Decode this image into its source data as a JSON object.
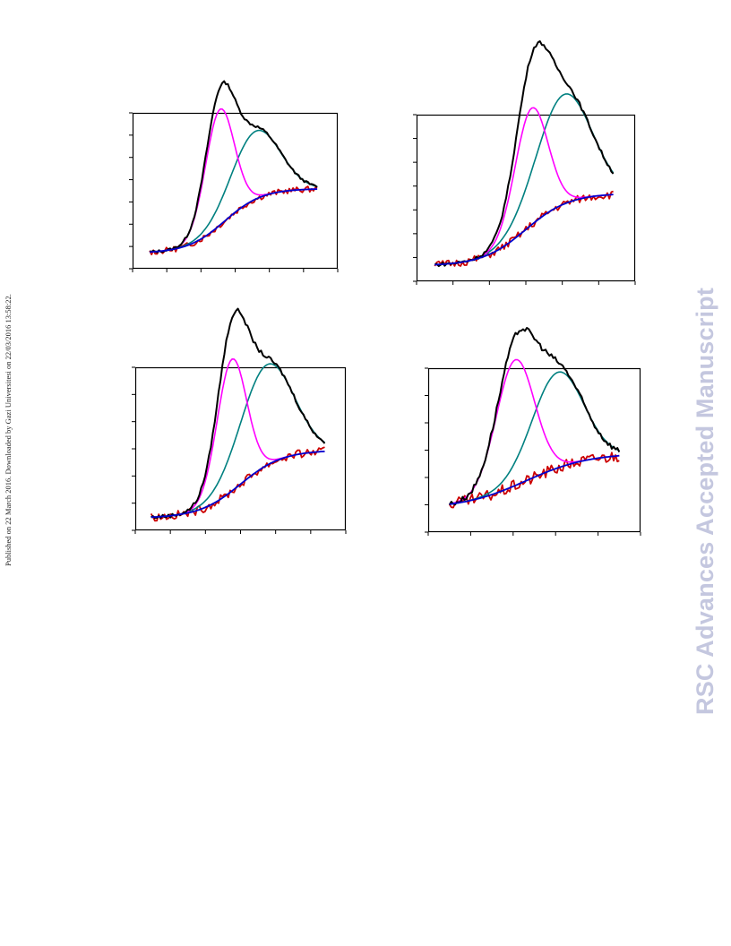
{
  "side_note": "Published on 22 March 2016. Downloaded by Gazi Universitesi on 22/03/2016 13:58:22.",
  "watermark": "RSC Advances Accepted Manuscript",
  "colors": {
    "measured": "#cc0000",
    "total_fit": "#000000",
    "peak_1": "#ff00ff",
    "peak_2": "#008080",
    "baseline": "#0000cc",
    "frame": "#000000"
  },
  "chart_data": [
    {
      "panel": "top-left",
      "type": "line",
      "xlim": [
        0,
        6
      ],
      "ylim": [
        0,
        7
      ],
      "x_ticks": 7,
      "y_ticks": 8,
      "x_range": [
        0.5,
        5.4
      ],
      "base_start": 0.7,
      "base_end": 3.6,
      "base_mid": 2.7,
      "base_width": 0.55,
      "peaks": [
        {
          "series": "peak_1",
          "center": 2.55,
          "height": 5.2,
          "width": 0.42
        },
        {
          "series": "peak_2",
          "center": 3.6,
          "height": 3.05,
          "width": 0.7
        }
      ],
      "noise": 0.12,
      "series": [
        "measured",
        "total_fit",
        "peak_1",
        "peak_2",
        "baseline"
      ]
    },
    {
      "panel": "top-right",
      "type": "line",
      "xlim": [
        0,
        6
      ],
      "ylim": [
        0,
        7
      ],
      "x_ticks": 7,
      "y_ticks": 8,
      "x_range": [
        0.5,
        5.4
      ],
      "base_start": 0.65,
      "base_end": 3.7,
      "base_mid": 3.0,
      "base_width": 0.6,
      "peaks": [
        {
          "series": "peak_1",
          "center": 3.15,
          "height": 4.9,
          "width": 0.45
        },
        {
          "series": "peak_2",
          "center": 4.05,
          "height": 4.6,
          "width": 0.75
        }
      ],
      "noise": 0.15,
      "series": [
        "measured",
        "total_fit",
        "peak_1",
        "peak_2",
        "baseline"
      ]
    },
    {
      "panel": "bottom-left",
      "type": "line",
      "xlim": [
        0,
        6
      ],
      "ylim": [
        0,
        6
      ],
      "x_ticks": 7,
      "y_ticks": 7,
      "x_range": [
        0.45,
        5.4
      ],
      "base_start": 0.45,
      "base_end": 2.95,
      "base_mid": 3.0,
      "base_width": 0.6,
      "peaks": [
        {
          "series": "peak_1",
          "center": 2.75,
          "height": 4.85,
          "width": 0.42
        },
        {
          "series": "peak_2",
          "center": 3.75,
          "height": 3.7,
          "width": 0.75
        }
      ],
      "noise": 0.14,
      "series": [
        "measured",
        "total_fit",
        "peak_1",
        "peak_2",
        "baseline"
      ]
    },
    {
      "panel": "bottom-right",
      "type": "line",
      "xlim": [
        0,
        5
      ],
      "ylim": [
        0,
        6
      ],
      "x_ticks": 6,
      "y_ticks": 7,
      "x_range": [
        0.5,
        4.5
      ],
      "base_start": 0.85,
      "base_end": 2.9,
      "base_mid": 2.3,
      "base_width": 0.75,
      "peaks": [
        {
          "series": "peak_1",
          "center": 2.05,
          "height": 4.6,
          "width": 0.45
        },
        {
          "series": "peak_2",
          "center": 3.05,
          "height": 3.5,
          "width": 0.6
        }
      ],
      "noise": 0.2,
      "series": [
        "measured",
        "total_fit",
        "peak_1",
        "peak_2",
        "baseline"
      ]
    }
  ]
}
